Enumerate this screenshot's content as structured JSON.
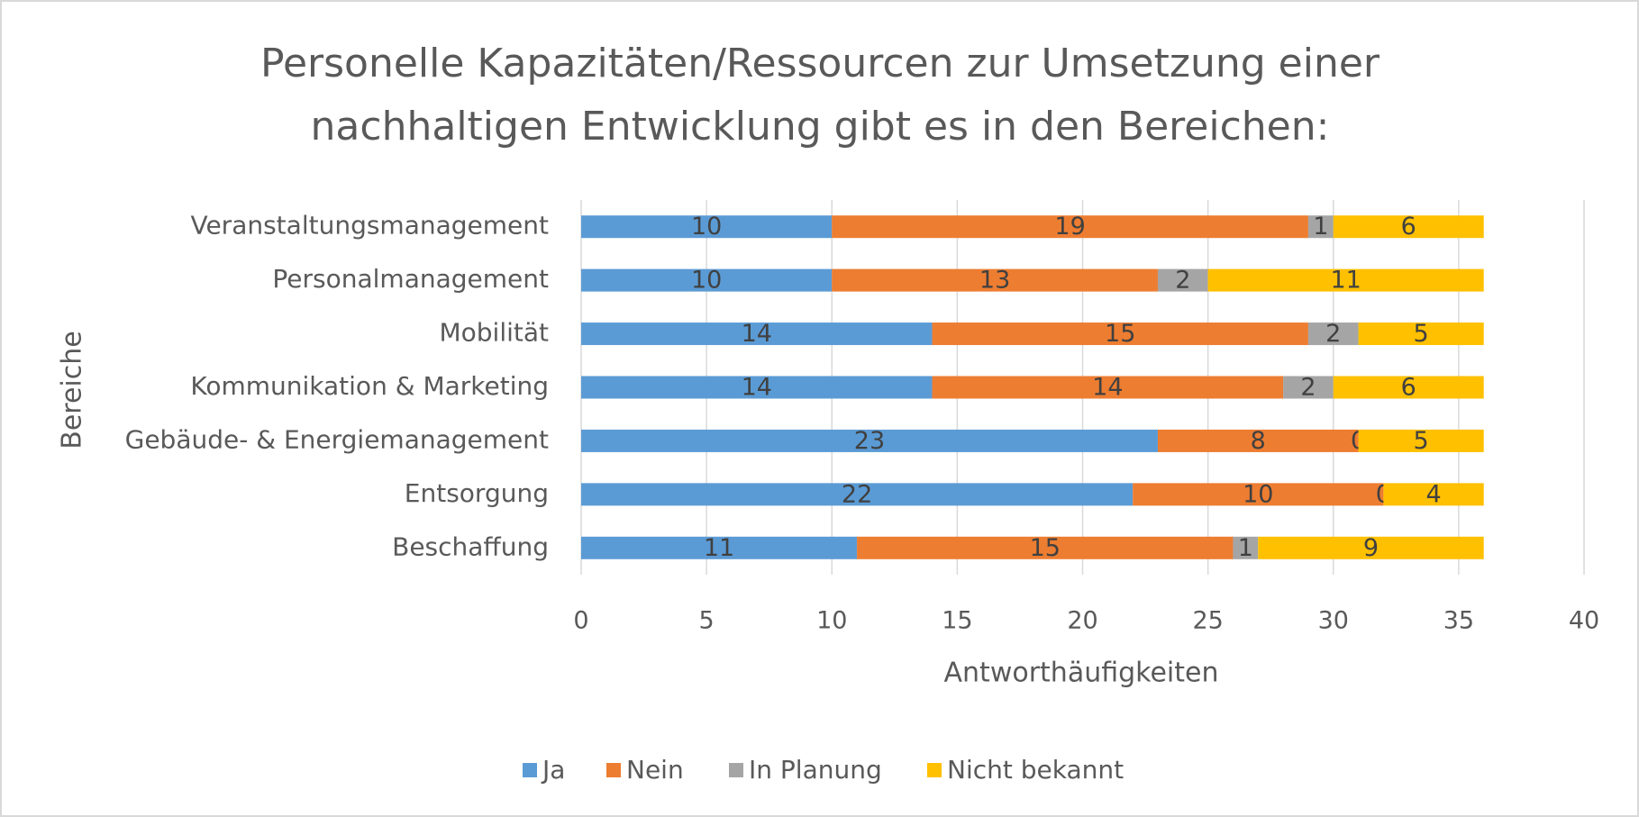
{
  "chart_data": {
    "type": "stacked-bar-horizontal",
    "title": "Personelle Kapazitäten/Ressourcen zur Umsetzung einer",
    "subtitle": "nachhaltigen Entwicklung gibt es in den Bereichen:",
    "x_label": "Antworthäufigkeiten",
    "y_label": "Bereiche",
    "categories": [
      "Veranstaltungsmanagement",
      "Personalmanagement",
      "Mobilität",
      "Kommunikation & Marketing",
      "Gebäude- & Energiemanagement",
      "Entsorgung",
      "Beschaffung"
    ],
    "series": [
      {
        "name": "Ja",
        "color": "#5b9bd5",
        "values": [
          10,
          10,
          14,
          14,
          23,
          22,
          11
        ]
      },
      {
        "name": "Nein",
        "color": "#ed7d31",
        "values": [
          19,
          13,
          15,
          14,
          8,
          10,
          15
        ]
      },
      {
        "name": "In Planung",
        "color": "#a5a5a5",
        "values": [
          1,
          2,
          2,
          2,
          0,
          0,
          1
        ]
      },
      {
        "name": "Nicht bekannt",
        "color": "#ffc000",
        "values": [
          6,
          11,
          5,
          6,
          5,
          4,
          9
        ]
      }
    ],
    "xlim": [
      0,
      40
    ],
    "xticks": [
      0,
      5,
      10,
      15,
      20,
      25,
      30,
      35,
      40
    ],
    "grid": true,
    "legend": "bottom"
  }
}
